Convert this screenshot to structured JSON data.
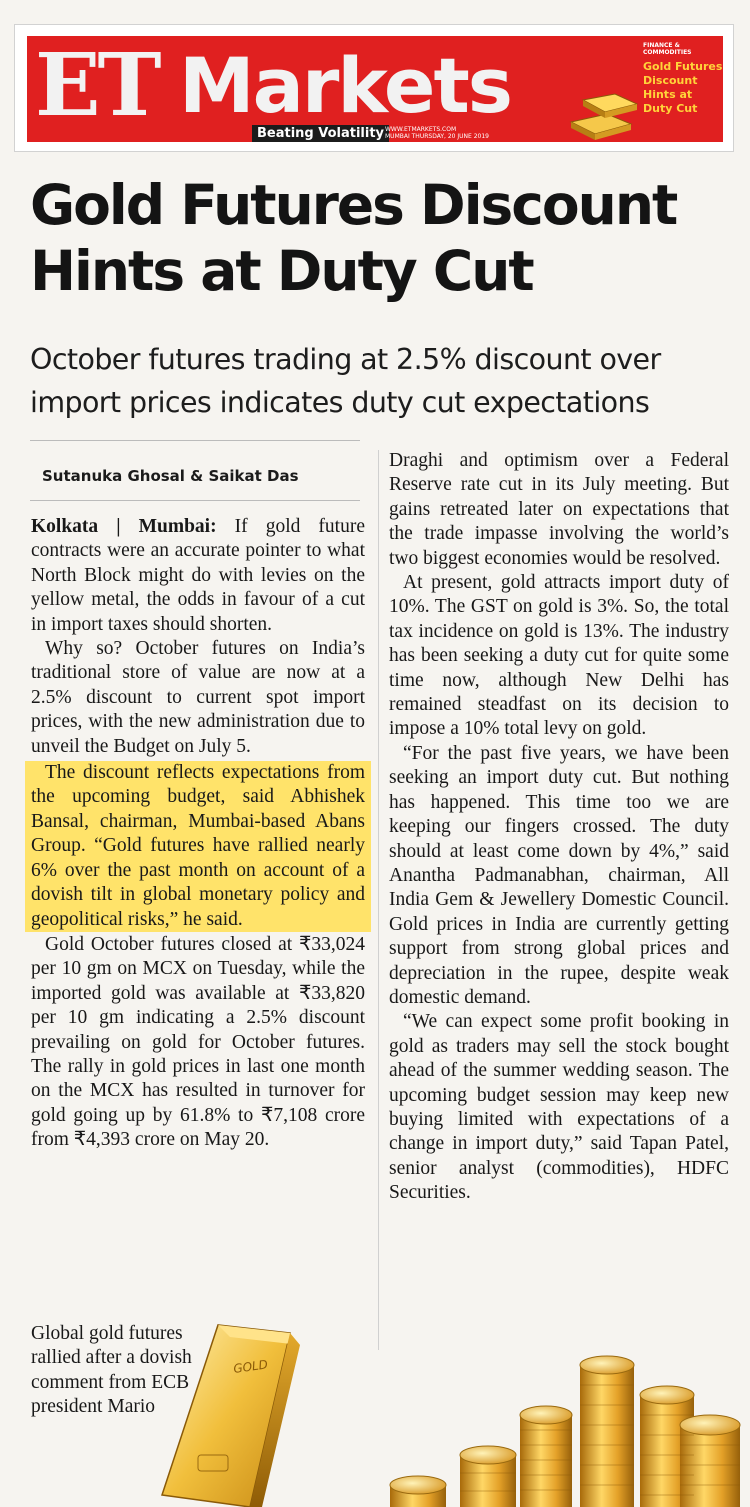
{
  "masthead": {
    "brand_et": "ET",
    "brand_markets": "Markets",
    "tagline": "Beating Volatility",
    "site": "WWW.ETMARKETS.COM",
    "edition": "MUMBAI THURSDAY, 20 JUNE 2019",
    "category": "FINANCE & COMMODITIES",
    "teaser": "Gold Futures Discount Hints at Duty Cut",
    "colors": {
      "red": "#e02020",
      "gold": "#ffd33a"
    }
  },
  "article": {
    "headline": "Gold Futures Discount Hints at Duty Cut",
    "deck": "October futures trading at 2.5% discount over import prices indicates duty cut expectations",
    "byline": "Sutanuka Ghosal & Saikat Das",
    "dateline": "Kolkata | Mumbai:",
    "left_paragraphs": {
      "p1": "If gold future contracts were an accurate pointer to what North Block might do with levies on the yellow metal, the odds in favour of a cut in import taxes should shorten.",
      "p2": "Why so? October futures on India’s traditional store of value are now at a 2.5% discount to current spot import prices, with the new administration due to unveil the Budget on July 5.",
      "p3": "The discount reflects expectations from the upcoming budget, said Abhishek Bansal, chairman, Mumbai-based Abans Group. “Gold futures have rallied nearly 6% over the past month on account of a dovish tilt in global monetary policy and geopolitical risks,” he said.",
      "p4": "Gold October futures closed at ₹33,024 per 10 gm on MCX on Tuesday, while the imported gold was available at ₹33,820 per 10 gm indicating a 2.5% discount prevailing on gold for October futures. The rally in gold prices in last one month on the MCX has resulted in turnover for gold going up by 61.8% to ₹7,108 crore from ₹4,393 crore on May 20.",
      "p5": "Global gold futures rallied after a dovish comment from ECB president Mario"
    },
    "right_paragraphs": {
      "p1": "Draghi and optimism over a Federal Reserve rate cut in its July meeting. But gains retreated later on expectations that the trade impasse involving the world’s two biggest economies would be resolved.",
      "p2": "At present, gold attracts import duty of 10%. The GST on gold is 3%. So, the total tax incidence on gold is 13%. The industry has been seeking a duty cut for quite some time now, although New Delhi has remained steadfast on its decision to impose a 10% total levy on gold.",
      "p3": "“For the past five years, we have been seeking an import duty cut. But nothing has happened. This time too we are keeping our fingers crossed. The duty should at least come down by 4%,” said Anantha Padmanabhan, chairman, All India Gem & Jewellery Domestic Council. Gold prices in India are currently getting support from strong global prices and depreciation in the rupee, despite weak domestic demand.",
      "p4": "“We can expect some profit booking in gold as traders may sell the stock bought ahead of the summer wedding season. The upcoming budget session may keep new buying limited with expectations of a change in import duty,” said Tapan Patel, senior analyst (commodities), HDFC Securities."
    },
    "highlight_color": "#ffe36a",
    "gold_bar_stamp": "GOLD"
  }
}
